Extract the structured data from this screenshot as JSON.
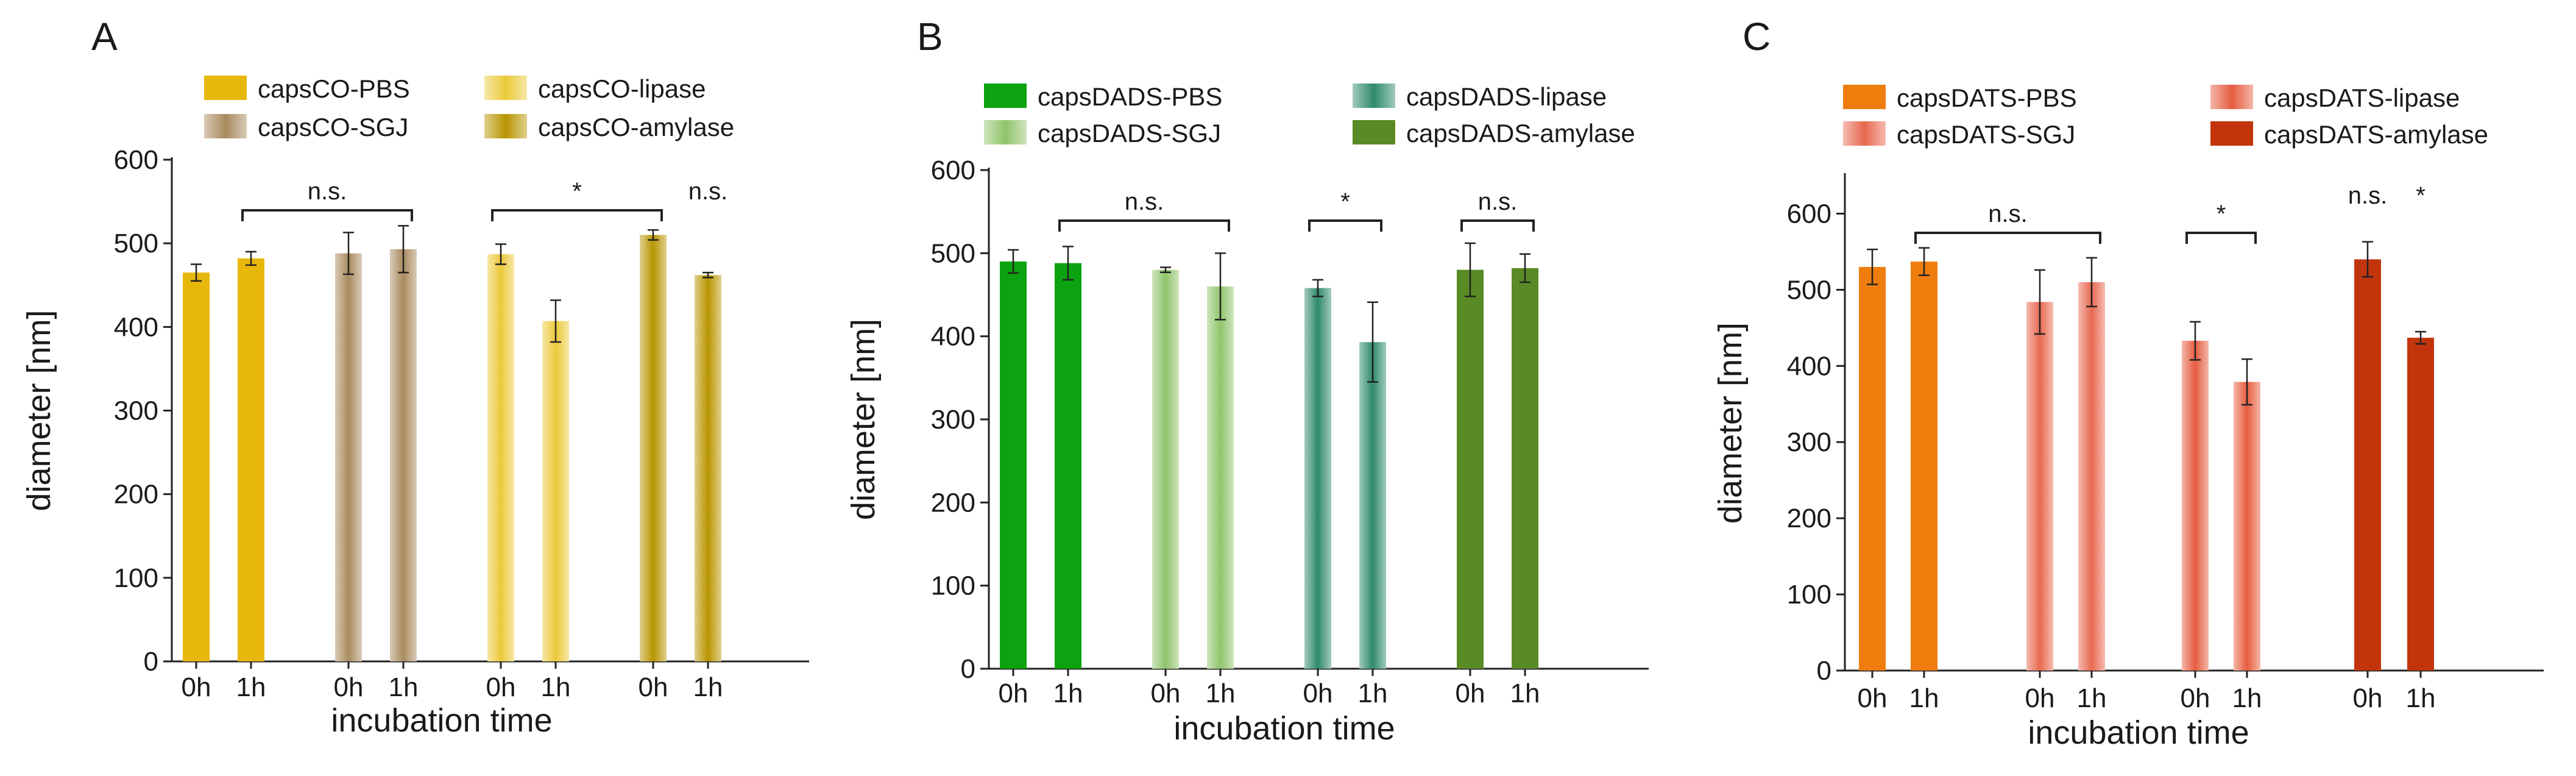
{
  "chart_data": [
    {
      "type": "bar",
      "panel_letter": "A",
      "ylabel": "diameter [nm]",
      "xlabel": "incubation time",
      "ylim": [
        0,
        600
      ],
      "yticks": [
        0,
        100,
        200,
        300,
        400,
        500,
        600
      ],
      "time_labels": [
        "0h",
        "1h"
      ],
      "groups": [
        {
          "name": "capsCO-PBS",
          "color": "#e8b70c",
          "style": "solid",
          "values": [
            465,
            482
          ],
          "errors": [
            10,
            8
          ]
        },
        {
          "name": "capsCO-SGJ",
          "color": "#a98a5e",
          "style": "gradient",
          "values": [
            488,
            493
          ],
          "errors": [
            25,
            28
          ]
        },
        {
          "name": "capsCO-lipase",
          "color": "#ecc93a",
          "style": "gradient",
          "values": [
            487,
            407
          ],
          "errors": [
            12,
            25
          ]
        },
        {
          "name": "capsCO-amylase",
          "color": "#b89400",
          "style": "gradient",
          "values": [
            510,
            462
          ],
          "errors": [
            6,
            3
          ]
        }
      ],
      "significance": [
        {
          "label": "n.s.",
          "from_bar": 1,
          "to_bar": 3
        },
        {
          "label": "*",
          "from_bar": 4,
          "to_bar": 6
        },
        {
          "label": "n.s.",
          "bar": 7
        }
      ]
    },
    {
      "type": "bar",
      "panel_letter": "B",
      "ylabel": "diameter [nm]",
      "xlabel": "incubation time",
      "ylim": [
        0,
        600
      ],
      "yticks": [
        0,
        100,
        200,
        300,
        400,
        500,
        600
      ],
      "time_labels": [
        "0h",
        "1h"
      ],
      "groups": [
        {
          "name": "capsDADS-PBS",
          "color": "#0ba30f",
          "style": "solid",
          "values": [
            490,
            488
          ],
          "errors": [
            14,
            20
          ]
        },
        {
          "name": "capsDADS-SGJ",
          "color": "#8fc46a",
          "style": "gradient",
          "values": [
            480,
            460
          ],
          "errors": [
            3,
            40
          ]
        },
        {
          "name": "capsDADS-lipase",
          "color": "#2e8a6a",
          "style": "gradient",
          "values": [
            458,
            393
          ],
          "errors": [
            10,
            48
          ]
        },
        {
          "name": "capsDADS-amylase",
          "color": "#5a8a25",
          "style": "solid",
          "values": [
            480,
            482
          ],
          "errors": [
            32,
            17
          ]
        }
      ],
      "significance": [
        {
          "label": "n.s.",
          "from_bar": 1,
          "to_bar": 3
        },
        {
          "label": "*",
          "from_bar": 4,
          "to_bar": 5
        },
        {
          "label": "n.s.",
          "from_bar": 6,
          "to_bar": 7
        }
      ]
    },
    {
      "type": "bar",
      "panel_letter": "C",
      "ylabel": "diameter [nm]",
      "xlabel": "incubation time",
      "ylim": [
        0,
        650
      ],
      "yticks": [
        0,
        100,
        200,
        300,
        400,
        500,
        600
      ],
      "time_labels": [
        "0h",
        "1h"
      ],
      "groups": [
        {
          "name": "capsDATS-PBS",
          "color": "#ee7d0e",
          "style": "solid",
          "values": [
            530,
            537
          ],
          "errors": [
            23,
            18
          ]
        },
        {
          "name": "capsDATS-SGJ",
          "color": "#e86850",
          "style": "gradient",
          "values": [
            484,
            510
          ],
          "errors": [
            42,
            32
          ]
        },
        {
          "name": "capsDATS-lipase",
          "color": "#e65c3e",
          "style": "gradient",
          "values": [
            433,
            379
          ],
          "errors": [
            25,
            30
          ]
        },
        {
          "name": "capsDATS-amylase",
          "color": "#c2350c",
          "style": "solid",
          "values": [
            540,
            437
          ],
          "errors": [
            23,
            8
          ]
        }
      ],
      "significance": [
        {
          "label": "n.s.",
          "from_bar": 1,
          "to_bar": 3
        },
        {
          "label": "*",
          "from_bar": 4,
          "to_bar": 5
        },
        {
          "label": "n.s.",
          "bar": 6
        },
        {
          "label": "*",
          "bar": 7
        }
      ]
    }
  ]
}
